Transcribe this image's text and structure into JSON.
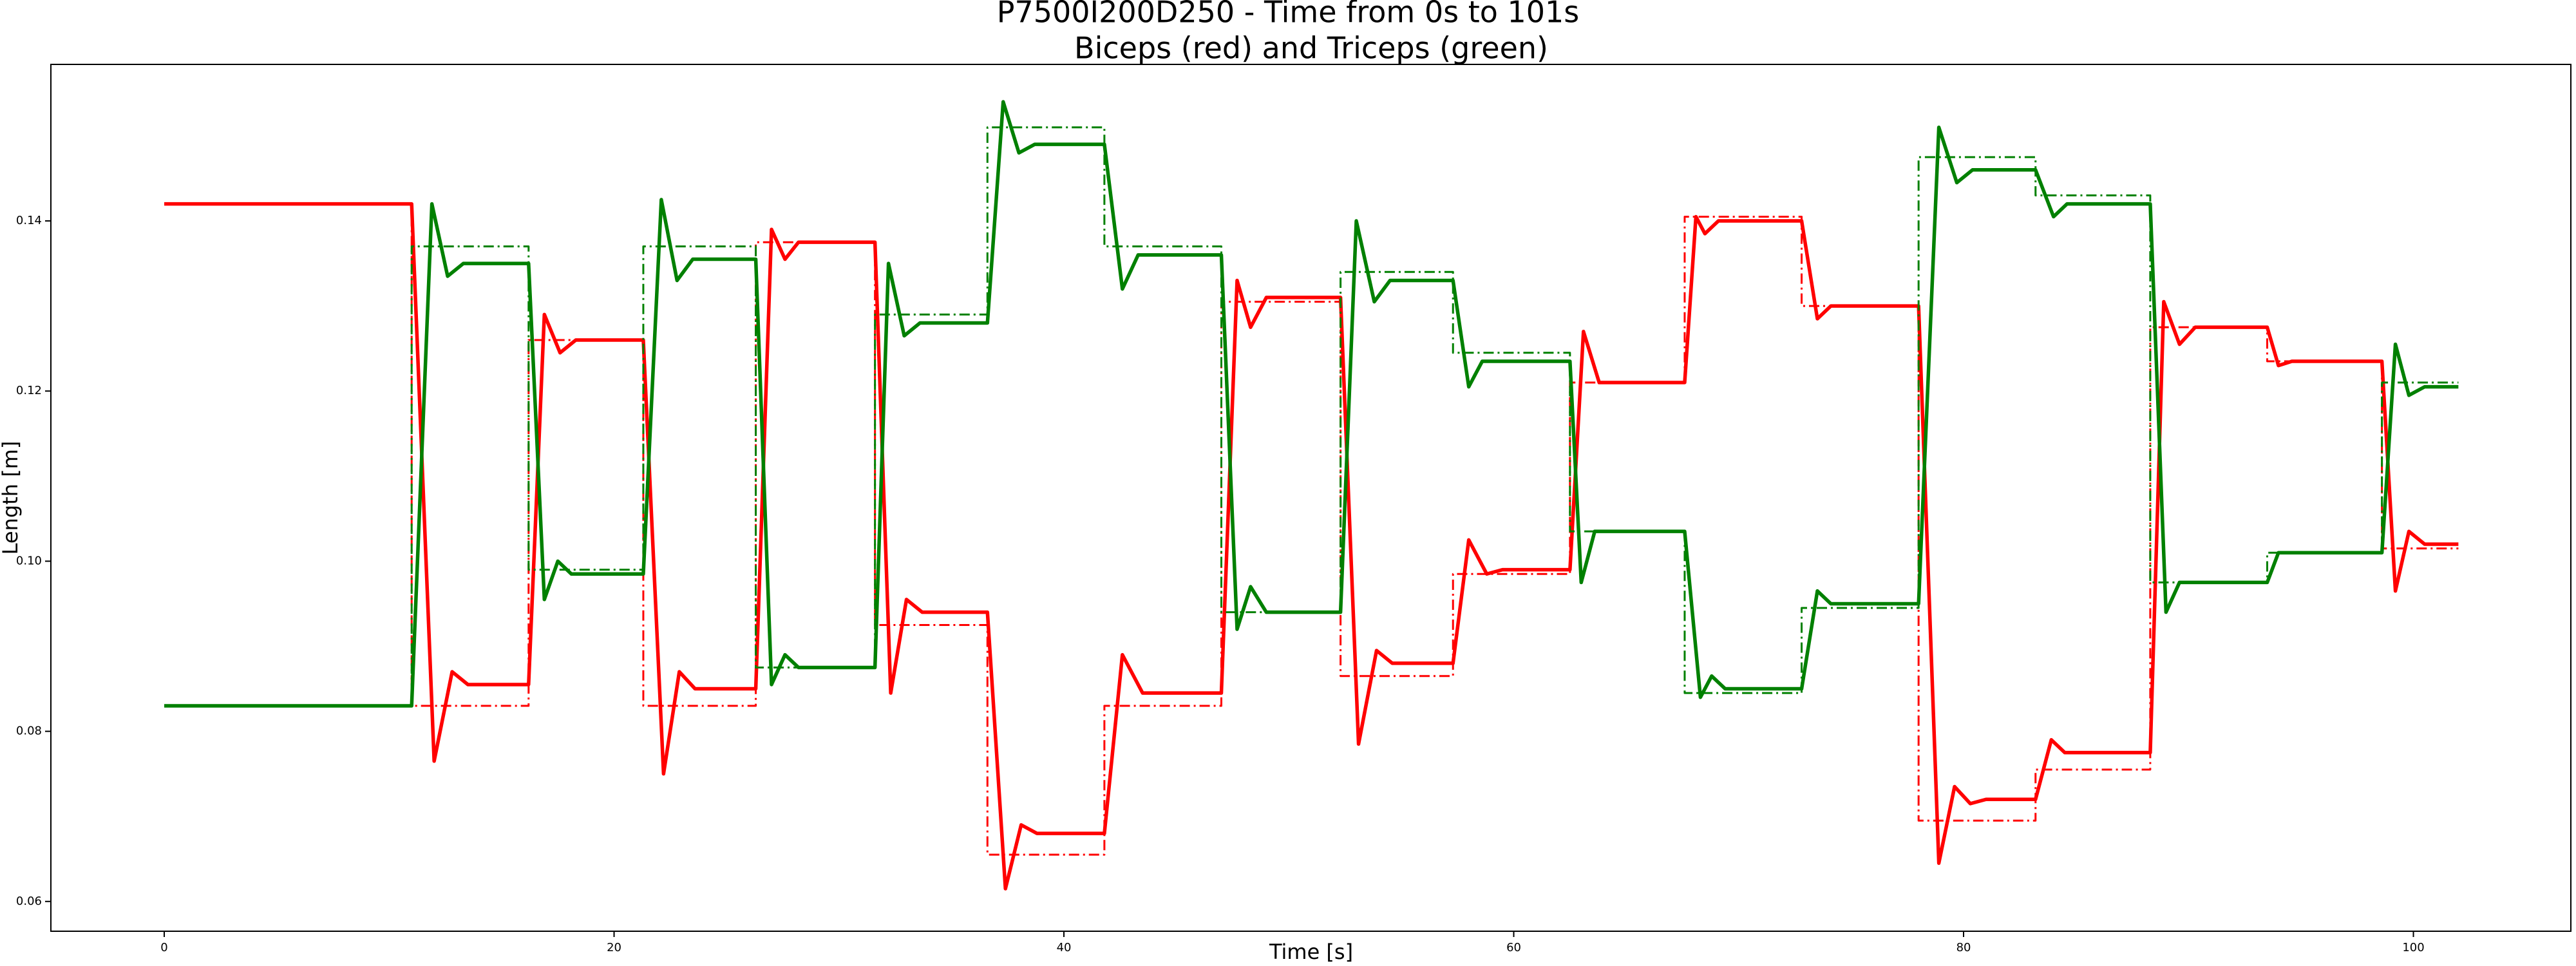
{
  "chart_data": {
    "type": "line",
    "title": "P7500I200D250 - Time from 0s to 101s",
    "subtitle": "Biceps (red) and Triceps (green)",
    "xlabel": "Time [s]",
    "ylabel": "Length [m]",
    "xlim": [
      -5.04,
      107.0
    ],
    "ylim": [
      0.0565,
      0.1584
    ],
    "xticks": [
      0,
      20,
      40,
      60,
      80,
      100
    ],
    "yticks": [
      0.06,
      0.08,
      {
        "value": 0.1,
        "label": "0.10"
      },
      0.12,
      0.14
    ],
    "grid": false,
    "series": [
      {
        "color": "#ff0000",
        "linestyle": "solid",
        "x": [
          0,
          11,
          12,
          12.8,
          13.5,
          16.2,
          16.9,
          17.6,
          18.3,
          21.3,
          22.2,
          22.9,
          23.6,
          26.3,
          27,
          27.6,
          28.2,
          31.6,
          32.3,
          33,
          33.7,
          36.6,
          37.4,
          38.1,
          38.8,
          41.8,
          42.6,
          43.5,
          47,
          47.7,
          48.3,
          49,
          52.3,
          53.1,
          53.9,
          54.6,
          57.3,
          58,
          58.8,
          59.5,
          62.5,
          63.1,
          63.8,
          67.6,
          68.1,
          68.5,
          69.1,
          72.8,
          73.5,
          74.1,
          78,
          78.9,
          79.6,
          80.3,
          81,
          83.2,
          83.9,
          84.5,
          88.3,
          88.9,
          89.6,
          90.3,
          93.5,
          94,
          94.6,
          98.6,
          99.2,
          99.8,
          100.5,
          102
        ],
        "values": [
          0.142,
          0.142,
          0.0765,
          0.087,
          0.0855,
          0.0855,
          0.129,
          0.1245,
          0.126,
          0.126,
          0.075,
          0.087,
          0.085,
          0.085,
          0.139,
          0.1355,
          0.1375,
          0.1375,
          0.0845,
          0.0955,
          0.094,
          0.094,
          0.0615,
          0.069,
          0.068,
          0.068,
          0.089,
          0.0845,
          0.0845,
          0.133,
          0.1275,
          0.131,
          0.131,
          0.0785,
          0.0895,
          0.088,
          0.088,
          0.1025,
          0.0985,
          0.099,
          0.099,
          0.127,
          0.121,
          0.121,
          0.1405,
          0.1385,
          0.14,
          0.14,
          0.1285,
          0.13,
          0.13,
          0.0645,
          0.0735,
          0.0715,
          0.072,
          0.072,
          0.079,
          0.0775,
          0.0775,
          0.1305,
          0.1255,
          0.1275,
          0.1275,
          0.123,
          0.1235,
          0.1235,
          0.0965,
          0.1035,
          0.102,
          0.102
        ]
      },
      {
        "color": "#ff0000",
        "linestyle": "dashdot",
        "x": [
          0,
          11,
          11,
          16.2,
          16.2,
          21.3,
          21.3,
          26.3,
          26.3,
          31.6,
          31.6,
          36.6,
          36.6,
          41.8,
          41.8,
          47,
          47,
          52.3,
          52.3,
          57.3,
          57.3,
          62.5,
          62.5,
          67.6,
          67.6,
          72.8,
          72.8,
          78,
          78,
          83.2,
          83.2,
          88.3,
          88.3,
          93.5,
          93.5,
          98.6,
          98.6,
          102
        ],
        "values": [
          0.142,
          0.142,
          0.083,
          0.083,
          0.126,
          0.126,
          0.083,
          0.083,
          0.1375,
          0.1375,
          0.0925,
          0.0925,
          0.0655,
          0.0655,
          0.083,
          0.083,
          0.1305,
          0.1305,
          0.0865,
          0.0865,
          0.0985,
          0.0985,
          0.121,
          0.121,
          0.1405,
          0.1405,
          0.13,
          0.13,
          0.0695,
          0.0695,
          0.0755,
          0.0755,
          0.1275,
          0.1275,
          0.1235,
          0.1235,
          0.1015,
          0.1015
        ]
      },
      {
        "color": "#008000",
        "linestyle": "solid",
        "x": [
          0,
          11,
          11.9,
          12.6,
          13.3,
          16.2,
          16.9,
          17.5,
          18.1,
          21.3,
          22.1,
          22.8,
          23.5,
          26.3,
          27,
          27.6,
          28.2,
          31.6,
          32.2,
          32.9,
          33.6,
          36.6,
          37.3,
          38,
          38.7,
          41.8,
          42.6,
          43.3,
          47,
          47.7,
          48.3,
          49,
          52.3,
          53,
          53.8,
          54.5,
          57.3,
          58,
          58.6,
          62.5,
          63,
          63.6,
          67.6,
          68.3,
          68.8,
          69.4,
          72.8,
          73.5,
          74.1,
          78,
          78.9,
          79.7,
          80.4,
          83.2,
          84,
          84.6,
          88.3,
          89,
          89.6,
          93.5,
          94,
          98.6,
          99.2,
          99.8,
          100.5,
          102
        ],
        "values": [
          0.083,
          0.083,
          0.142,
          0.1335,
          0.135,
          0.135,
          0.0955,
          0.1,
          0.0985,
          0.0985,
          0.1425,
          0.133,
          0.1355,
          0.1355,
          0.0855,
          0.089,
          0.0875,
          0.0875,
          0.135,
          0.1265,
          0.128,
          0.128,
          0.154,
          0.148,
          0.149,
          0.149,
          0.132,
          0.136,
          0.136,
          0.092,
          0.097,
          0.094,
          0.094,
          0.14,
          0.1305,
          0.133,
          0.133,
          0.1205,
          0.1235,
          0.1235,
          0.0975,
          0.1035,
          0.1035,
          0.084,
          0.0865,
          0.085,
          0.085,
          0.0965,
          0.095,
          0.095,
          0.151,
          0.1445,
          0.146,
          0.146,
          0.1405,
          0.142,
          0.142,
          0.094,
          0.0975,
          0.0975,
          0.101,
          0.101,
          0.1255,
          0.1195,
          0.1205,
          0.1205
        ]
      },
      {
        "color": "#008000",
        "linestyle": "dashdot",
        "x": [
          0,
          11,
          11,
          16.2,
          16.2,
          21.3,
          21.3,
          26.3,
          26.3,
          31.6,
          31.6,
          36.6,
          36.6,
          41.8,
          41.8,
          47,
          47,
          52.3,
          52.3,
          57.3,
          57.3,
          62.5,
          62.5,
          67.6,
          67.6,
          72.8,
          72.8,
          78,
          78,
          83.2,
          83.2,
          88.3,
          88.3,
          93.5,
          93.5,
          98.6,
          98.6,
          102
        ],
        "values": [
          0.083,
          0.083,
          0.137,
          0.137,
          0.099,
          0.099,
          0.137,
          0.137,
          0.0875,
          0.0875,
          0.129,
          0.129,
          0.151,
          0.151,
          0.137,
          0.137,
          0.094,
          0.094,
          0.134,
          0.134,
          0.1245,
          0.1245,
          0.1035,
          0.1035,
          0.0845,
          0.0845,
          0.0945,
          0.0945,
          0.1475,
          0.1475,
          0.143,
          0.143,
          0.0975,
          0.0975,
          0.101,
          0.101,
          0.121,
          0.121
        ]
      }
    ]
  }
}
